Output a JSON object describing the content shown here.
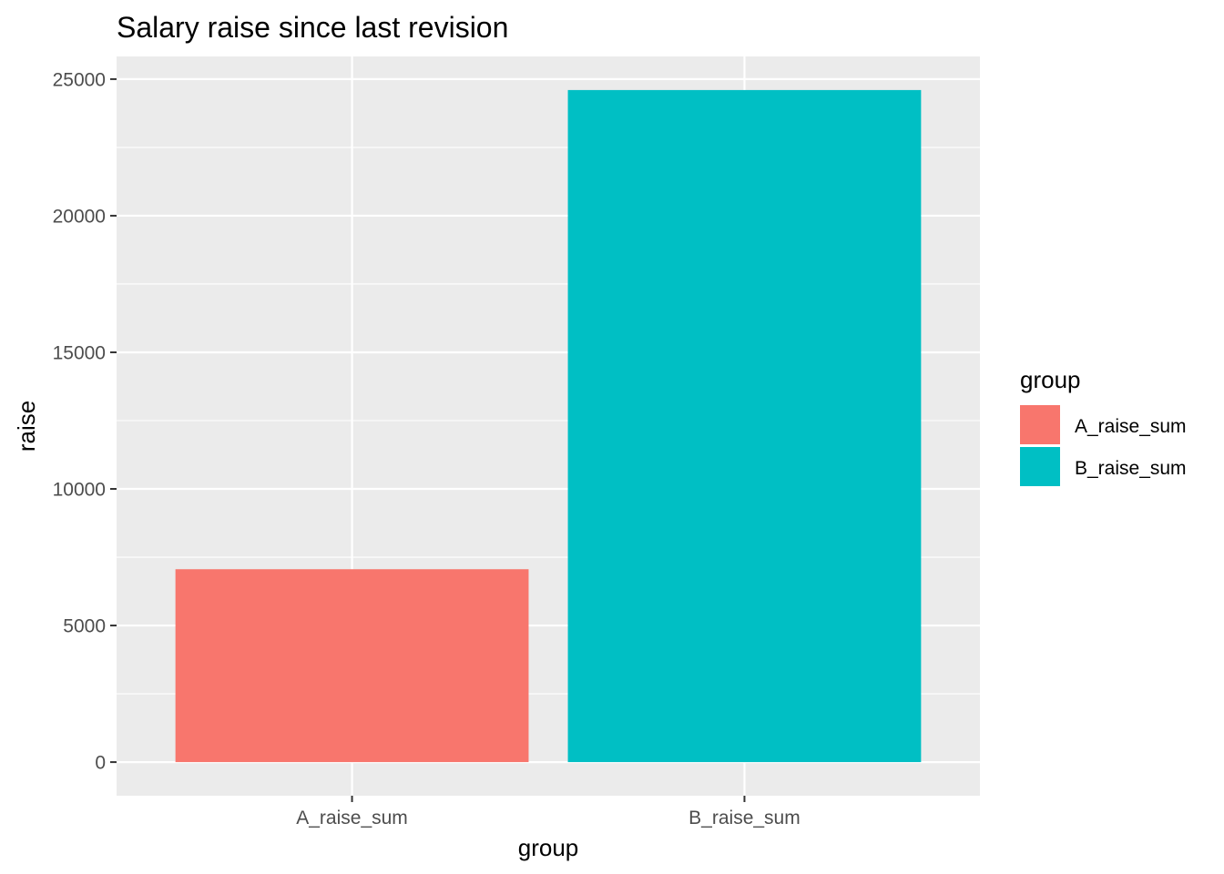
{
  "chart_data": {
    "type": "bar",
    "title": "Salary raise since last revision",
    "xlabel": "group",
    "ylabel": "raise",
    "categories": [
      "A_raise_sum",
      "B_raise_sum"
    ],
    "values": [
      7060,
      24600
    ],
    "ylim": [
      -1230,
      25830
    ],
    "yticks": [
      0,
      5000,
      10000,
      15000,
      20000,
      25000
    ],
    "ytick_labels": [
      "0",
      "5000",
      "10000",
      "15000",
      "20000",
      "25000"
    ],
    "grid": true,
    "legend": {
      "title": "group",
      "position": "right",
      "entries": [
        "A_raise_sum",
        "B_raise_sum"
      ]
    },
    "colors": [
      "#F8766D",
      "#00BFC4"
    ],
    "panel_background": "#EBEBEB",
    "grid_color": "#FFFFFF"
  }
}
